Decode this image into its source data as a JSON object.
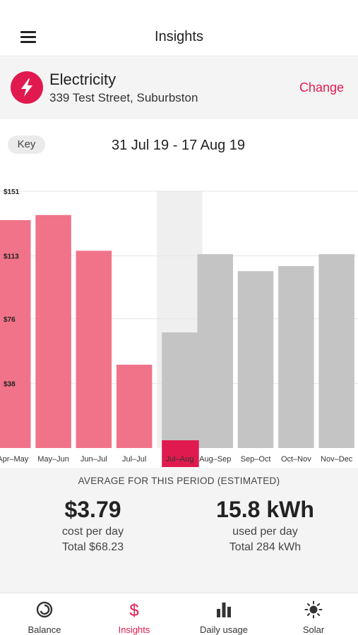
{
  "header": {
    "title": "Insights"
  },
  "account": {
    "type": "Electricity",
    "address": "339 Test Street, Suburbston",
    "change_label": "Change",
    "icon": "lightning-bolt-icon"
  },
  "period": {
    "key_label": "Key",
    "range": "31 Jul 19 - 17 Aug 19"
  },
  "chart_data": {
    "type": "bar",
    "categories": [
      "Apr–May",
      "May–Jun",
      "Jun–Jul",
      "Jul–Jul",
      "Jul–Aug",
      "Aug–Sep",
      "Sep–Oct",
      "Oct–Nov",
      "Nov–Dec"
    ],
    "values": [
      134,
      137,
      116,
      49,
      68,
      114,
      104,
      107,
      114
    ],
    "status": [
      "actual",
      "actual",
      "actual",
      "actual",
      "current",
      "estimated",
      "estimated",
      "estimated",
      "estimated"
    ],
    "y_ticks": [
      "$151",
      "$113",
      "$76",
      "$38"
    ],
    "y_tick_values": [
      151,
      113,
      76,
      38
    ],
    "ylim": [
      0,
      151
    ],
    "selected_category": "Jul–Aug",
    "grid": true,
    "colors": {
      "actual": "#f07389",
      "estimated": "#c4c4c4",
      "selected_highlight": "#e01a4f",
      "selected_column_bg": "#efefef"
    }
  },
  "stats": {
    "heading": "AVERAGE FOR THIS PERIOD (ESTIMATED)",
    "cost": {
      "value": "$3.79",
      "label": "cost per day",
      "total": "Total $68.23"
    },
    "usage": {
      "value": "15.8 kWh",
      "label": "used per day",
      "total": "Total 284 kWh"
    }
  },
  "tabs": [
    {
      "label": "Balance",
      "icon": "balance-ring-icon",
      "active": false
    },
    {
      "label": "Insights",
      "icon": "dollar-icon",
      "active": true
    },
    {
      "label": "Daily usage",
      "icon": "bar-chart-icon",
      "active": false
    },
    {
      "label": "Solar",
      "icon": "sun-icon",
      "active": false
    }
  ],
  "colors": {
    "accent": "#e01a4f",
    "panel_bg": "#f4f4f4"
  }
}
